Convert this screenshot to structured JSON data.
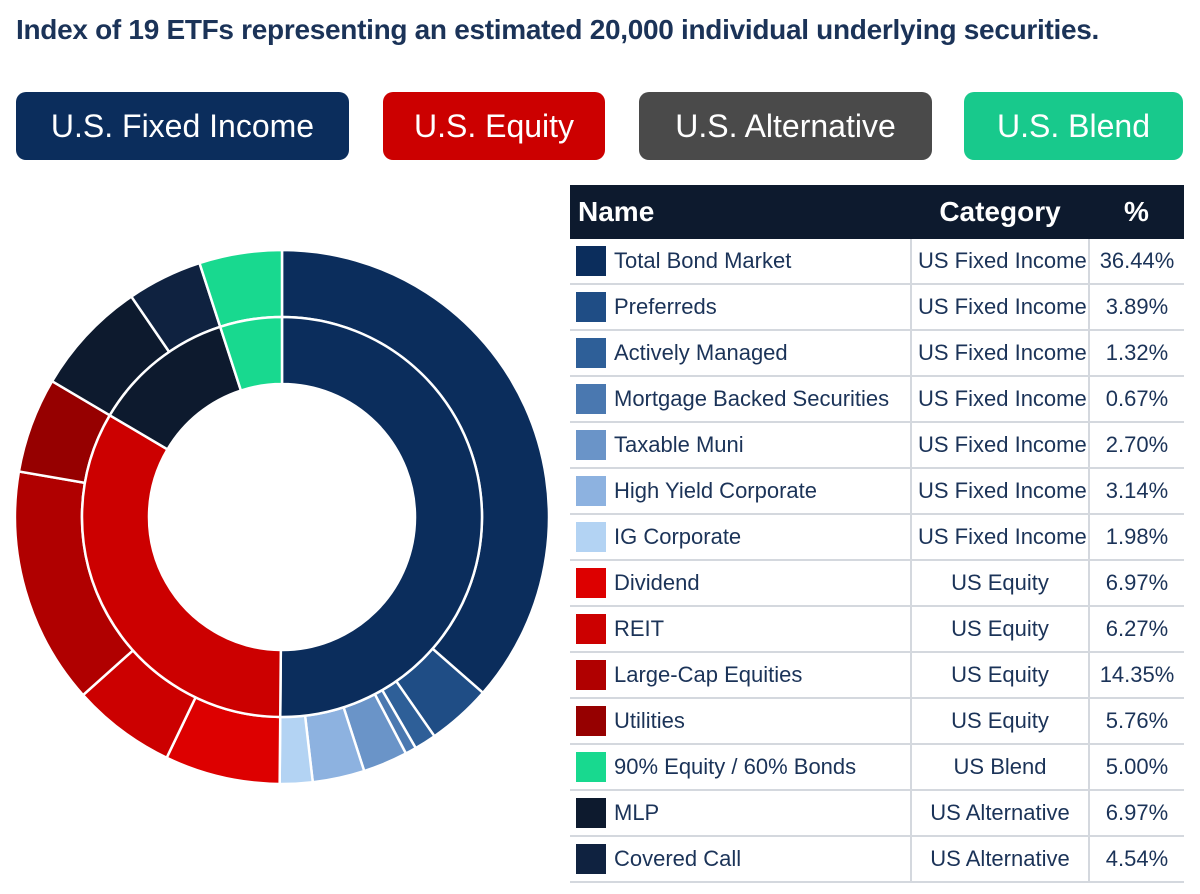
{
  "title": "Index of 19 ETFs representing an estimated 20,000 individual underlying securities.",
  "categories": [
    {
      "label": "U.S. Fixed Income",
      "color": "#0b2d5c"
    },
    {
      "label": "U.S. Equity",
      "color": "#cc0000"
    },
    {
      "label": "U.S. Alternative",
      "color": "#4a4a4a"
    },
    {
      "label": "U.S. Blend",
      "color": "#18c98c"
    }
  ],
  "table": {
    "headers": {
      "name": "Name",
      "category": "Category",
      "percent": "%"
    },
    "rows": [
      {
        "name": "Total Bond Market",
        "category": "US Fixed Income",
        "percent": "36.44%",
        "color": "#0b2d5c"
      },
      {
        "name": "Preferreds",
        "category": "US Fixed Income",
        "percent": "3.89%",
        "color": "#1f4d85"
      },
      {
        "name": "Actively Managed",
        "category": "US Fixed Income",
        "percent": "1.32%",
        "color": "#2e5f98"
      },
      {
        "name": "Mortgage Backed Securities",
        "category": "US Fixed Income",
        "percent": "0.67%",
        "color": "#4a78b0"
      },
      {
        "name": "Taxable Muni",
        "category": "US Fixed Income",
        "percent": "2.70%",
        "color": "#6a94c8"
      },
      {
        "name": "High Yield Corporate",
        "category": "US Fixed Income",
        "percent": "3.14%",
        "color": "#8db2e0"
      },
      {
        "name": "IG Corporate",
        "category": "US Fixed Income",
        "percent": "1.98%",
        "color": "#b3d3f3"
      },
      {
        "name": "Dividend",
        "category": "US Equity",
        "percent": "6.97%",
        "color": "#dd0000"
      },
      {
        "name": "REIT",
        "category": "US Equity",
        "percent": "6.27%",
        "color": "#cc0000"
      },
      {
        "name": "Large-Cap Equities",
        "category": "US Equity",
        "percent": "14.35%",
        "color": "#b00000"
      },
      {
        "name": "Utilities",
        "category": "US Equity",
        "percent": "5.76%",
        "color": "#960000"
      },
      {
        "name": "90% Equity / 60% Bonds",
        "category": "US Blend",
        "percent": "5.00%",
        "color": "#18d98f"
      },
      {
        "name": "MLP",
        "category": "US Alternative",
        "percent": "6.97%",
        "color": "#0d1a2e"
      },
      {
        "name": "Covered Call",
        "category": "US Alternative",
        "percent": "4.54%",
        "color": "#0f2240"
      }
    ]
  },
  "chart_data": {
    "type": "pie",
    "style": "nested-donut",
    "inner_ring": {
      "labels": [
        "US Fixed Income",
        "US Equity",
        "US Alternative",
        "US Blend"
      ],
      "values": [
        50.14,
        33.35,
        11.51,
        5.0
      ],
      "colors": [
        "#0b2d5c",
        "#cc0000",
        "#0d1a2e",
        "#18d98f"
      ]
    },
    "outer_ring": {
      "labels": [
        "Total Bond Market",
        "Preferreds",
        "Actively Managed",
        "Mortgage Backed Securities",
        "Taxable Muni",
        "High Yield Corporate",
        "IG Corporate",
        "Dividend",
        "REIT",
        "Large-Cap Equities",
        "Utilities",
        "MLP",
        "Covered Call",
        "90% Equity / 60% Bonds"
      ],
      "values": [
        36.44,
        3.89,
        1.32,
        0.67,
        2.7,
        3.14,
        1.98,
        6.97,
        6.27,
        14.35,
        5.76,
        6.97,
        4.54,
        5.0
      ],
      "colors": [
        "#0b2d5c",
        "#1f4d85",
        "#2e5f98",
        "#4a78b0",
        "#6a94c8",
        "#8db2e0",
        "#b3d3f3",
        "#dd0000",
        "#cc0000",
        "#b00000",
        "#960000",
        "#0d1a2e",
        "#0f2240",
        "#18d98f"
      ]
    }
  }
}
